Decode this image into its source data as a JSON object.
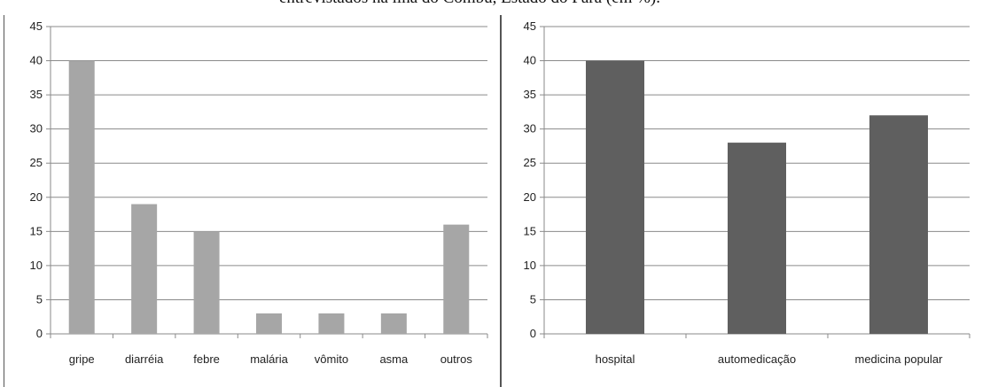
{
  "caption": "entrevistados na ilha do Combu, Estado do Pará (em %).",
  "chart_data": [
    {
      "type": "bar",
      "categories": [
        "gripe",
        "diarréia",
        "febre",
        "malária",
        "vômito",
        "asma",
        "outros"
      ],
      "values": [
        40,
        19,
        15,
        3,
        3,
        3,
        16
      ],
      "ylim": [
        0,
        45
      ],
      "yticks": [
        0,
        5,
        10,
        15,
        20,
        25,
        30,
        35,
        40,
        45
      ],
      "grid": true,
      "bar_color": "#a6a6a6"
    },
    {
      "type": "bar",
      "categories": [
        "hospital",
        "automedicação",
        "medicina popular"
      ],
      "values": [
        40,
        28,
        32
      ],
      "ylim": [
        0,
        45
      ],
      "yticks": [
        0,
        5,
        10,
        15,
        20,
        25,
        30,
        35,
        40,
        45
      ],
      "grid": true,
      "bar_color": "#5f5f5f"
    }
  ]
}
